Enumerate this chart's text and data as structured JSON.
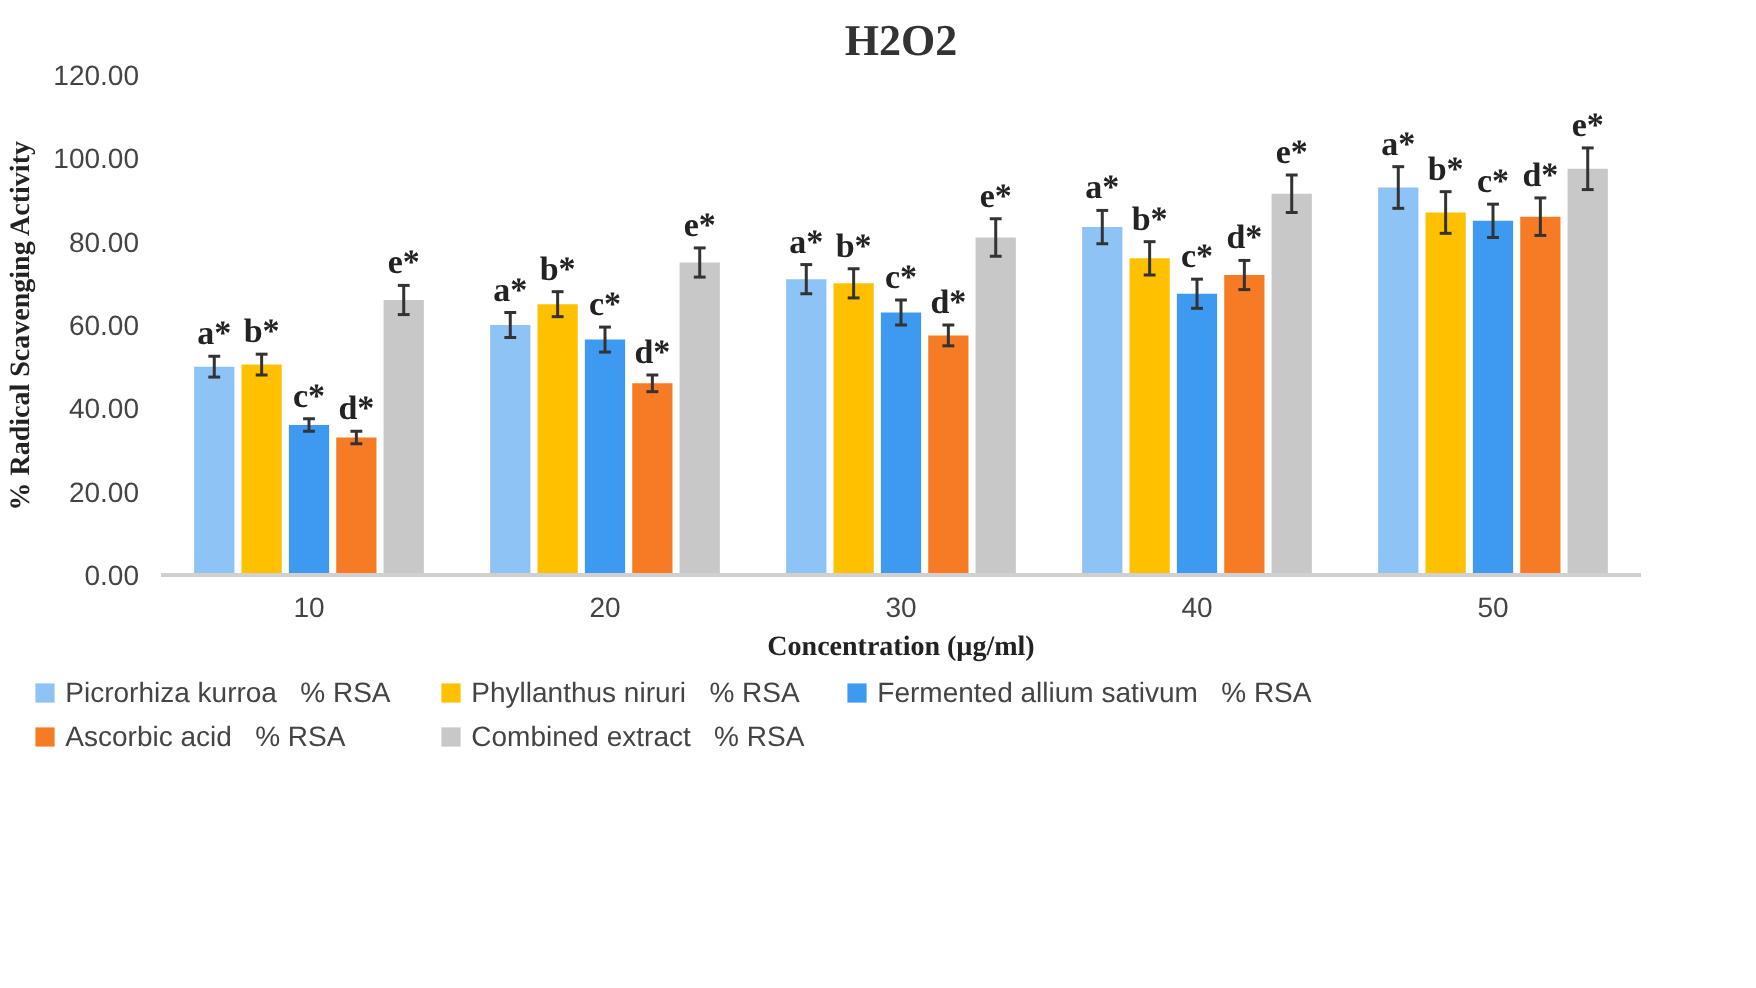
{
  "chart_data": {
    "type": "bar",
    "title": "H2O2",
    "xlabel": "Concentration (µg/ml)",
    "ylabel": "% Radical Scavenging Activity",
    "categories": [
      "10",
      "20",
      "30",
      "40",
      "50"
    ],
    "series": [
      {
        "name": "Picrorhiza kurroa   % RSA",
        "color": "#8dc3f5",
        "values": [
          50,
          60,
          71,
          83.5,
          93
        ],
        "errors": [
          2.5,
          3,
          3.5,
          4,
          5
        ],
        "value_labels": [
          "a*",
          "a*",
          "a*",
          "a*",
          "a*"
        ]
      },
      {
        "name": "Phyllanthus niruri   % RSA",
        "color": "#ffc000",
        "values": [
          50.5,
          65,
          70,
          76,
          87
        ],
        "errors": [
          2.5,
          3,
          3.5,
          4,
          5
        ],
        "value_labels": [
          "b*",
          "b*",
          "b*",
          "b*",
          "b*"
        ]
      },
      {
        "name": "Fermented allium sativum   % RSA",
        "color": "#3d9af0",
        "values": [
          36,
          56.5,
          63,
          67.5,
          85
        ],
        "errors": [
          1.5,
          3,
          3,
          3.5,
          4
        ],
        "value_labels": [
          "c*",
          "c*",
          "c*",
          "c*",
          "c*"
        ]
      },
      {
        "name": "Ascorbic acid   % RSA",
        "color": "#f77b24",
        "values": [
          33,
          46,
          57.5,
          72,
          86
        ],
        "errors": [
          1.5,
          2,
          2.5,
          3.5,
          4.5
        ],
        "value_labels": [
          "d*",
          "d*",
          "d*",
          "d*",
          "d*"
        ]
      },
      {
        "name": "Combined extract   % RSA",
        "color": "#c8c8c8",
        "values": [
          66,
          75,
          81,
          91.5,
          97.5
        ],
        "errors": [
          3.5,
          3.5,
          4.5,
          4.5,
          5
        ],
        "value_labels": [
          "e*",
          "e*",
          "e*",
          "e*",
          "e*"
        ]
      }
    ],
    "ylim": [
      0,
      120
    ],
    "yticks": [
      {
        "value": 0,
        "label": "0.00"
      },
      {
        "value": 20,
        "label": "20.00"
      },
      {
        "value": 40,
        "label": "40.00"
      },
      {
        "value": 60,
        "label": "60.00"
      },
      {
        "value": 80,
        "label": "80.00"
      },
      {
        "value": 100,
        "label": "100.00"
      },
      {
        "value": 120,
        "label": "120.00"
      }
    ],
    "grid": false,
    "legend": "bottom"
  }
}
